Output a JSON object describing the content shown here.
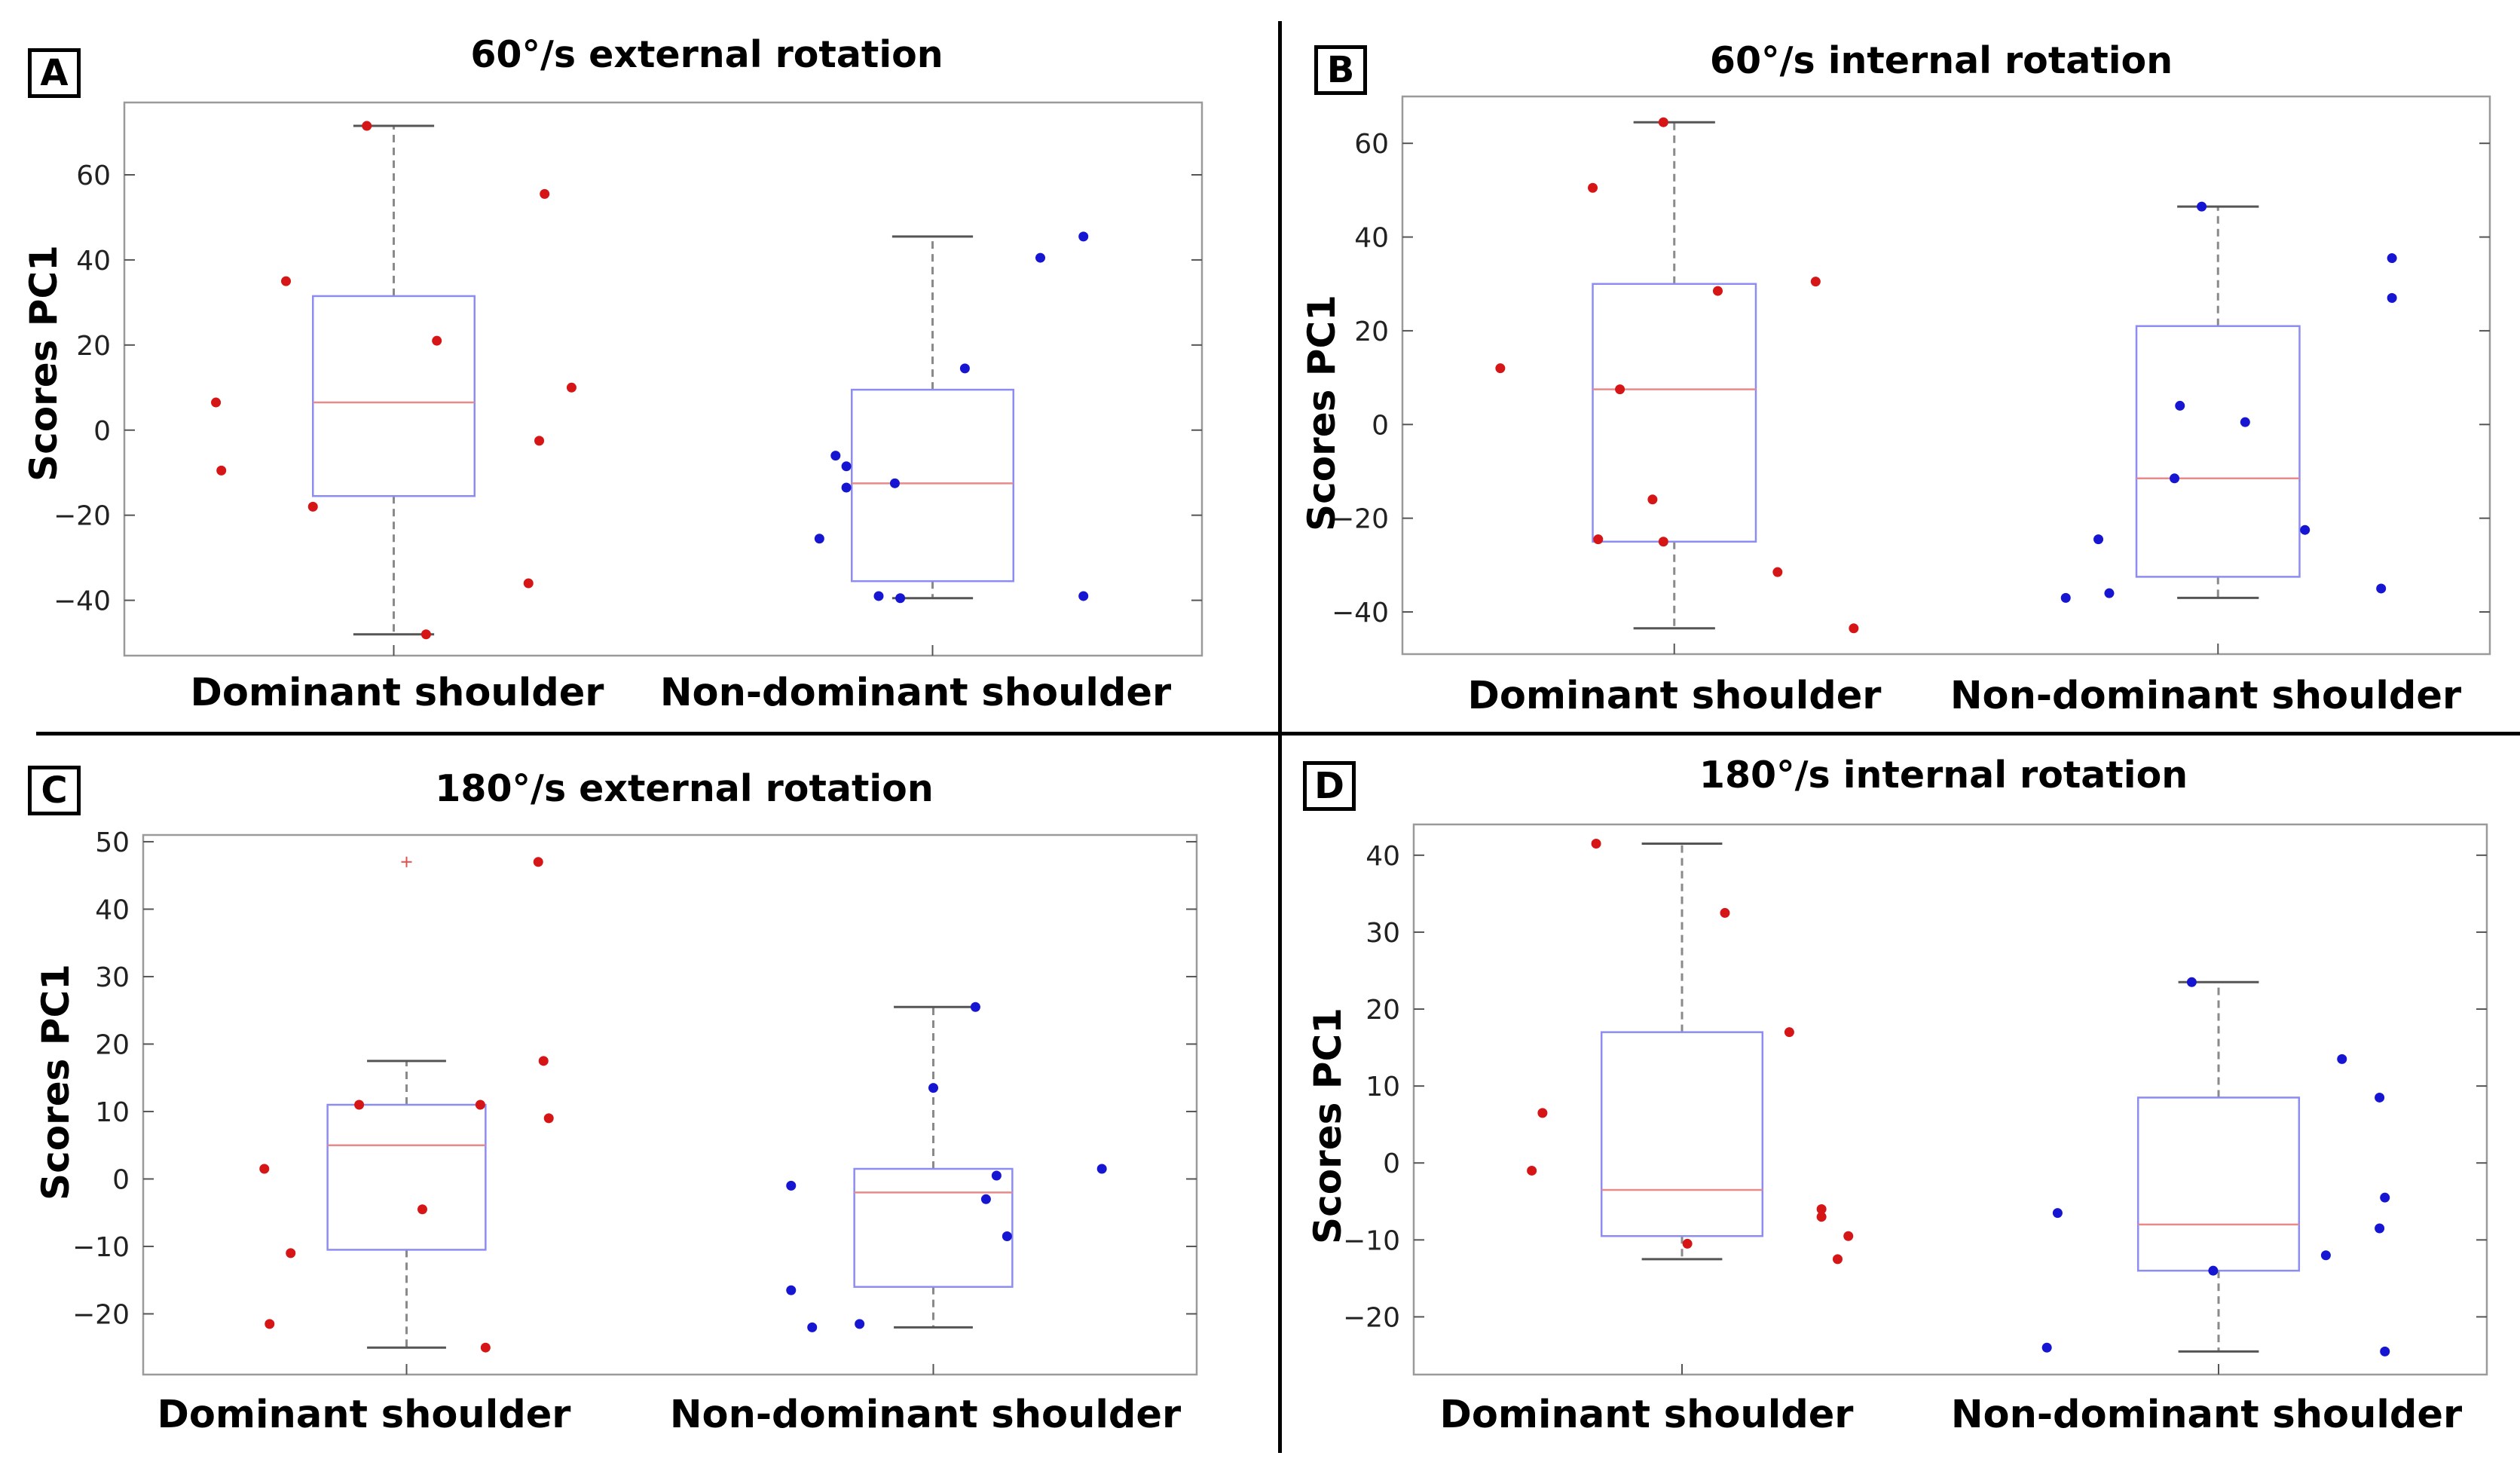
{
  "colors": {
    "box_edge": "#8c8cf2",
    "median": "#e88a8a",
    "whisker": "#8a8a8a",
    "dominant_points": "#d61616",
    "non_dominant_points": "#1616d2",
    "outlier": "#e05050",
    "frame": "#9a9a9a"
  },
  "chart_data": [
    {
      "type": "box",
      "panel": "A",
      "title": "60°/s external rotation",
      "ylabel": "Scores PC1",
      "ylim": [
        -53,
        77
      ],
      "yticks": [
        -40,
        -20,
        0,
        20,
        40,
        60
      ],
      "ytick_labels": [
        "−40",
        "−20",
        "0",
        "20",
        "40",
        "60"
      ],
      "categories": [
        "Dominant shoulder",
        "Non-dominant shoulder"
      ],
      "boxes": [
        {
          "name": "Dominant shoulder",
          "whisker_low": -48,
          "q1": -15.5,
          "median": 6.5,
          "q3": 31.5,
          "whisker_high": 71.5,
          "outliers": [],
          "points": [
            [
              -0.05,
              71.5
            ],
            [
              0.28,
              55.5
            ],
            [
              -0.2,
              35
            ],
            [
              0.08,
              21
            ],
            [
              -0.33,
              6.5
            ],
            [
              0.33,
              10
            ],
            [
              0.27,
              -2.5
            ],
            [
              -0.32,
              -9.5
            ],
            [
              -0.15,
              -18
            ],
            [
              0.25,
              -36
            ],
            [
              0.06,
              -48
            ]
          ]
        },
        {
          "name": "Non-dominant shoulder",
          "whisker_low": -39.5,
          "q1": -35.5,
          "median": -12.5,
          "q3": 9.5,
          "whisker_high": 45.5,
          "outliers": [],
          "points": [
            [
              0.28,
              45.5
            ],
            [
              0.2,
              40.5
            ],
            [
              0.06,
              14.5
            ],
            [
              -0.18,
              -6
            ],
            [
              -0.16,
              -8.5
            ],
            [
              -0.07,
              -12.5
            ],
            [
              -0.16,
              -13.5
            ],
            [
              -0.21,
              -25.5
            ],
            [
              -0.1,
              -39
            ],
            [
              -0.06,
              -39.5
            ],
            [
              0.28,
              -39
            ]
          ]
        }
      ]
    },
    {
      "type": "box",
      "panel": "B",
      "title": "60°/s internal rotation",
      "ylabel": "Scores PC1",
      "ylim": [
        -49,
        70
      ],
      "yticks": [
        -40,
        -20,
        0,
        20,
        40,
        60
      ],
      "ytick_labels": [
        "−40",
        "−20",
        "0",
        "20",
        "40",
        "60"
      ],
      "categories": [
        "Dominant shoulder",
        "Non-dominant shoulder"
      ],
      "boxes": [
        {
          "name": "Dominant shoulder",
          "whisker_low": -43.5,
          "q1": -25,
          "median": 7.5,
          "q3": 30,
          "whisker_high": 64.5,
          "outliers": [],
          "points": [
            [
              -0.02,
              64.5
            ],
            [
              -0.15,
              50.5
            ],
            [
              0.26,
              30.5
            ],
            [
              0.08,
              28.5
            ],
            [
              -0.32,
              12
            ],
            [
              -0.1,
              7.5
            ],
            [
              -0.04,
              -16
            ],
            [
              -0.14,
              -24.5
            ],
            [
              -0.02,
              -25
            ],
            [
              0.19,
              -31.5
            ],
            [
              0.33,
              -43.5
            ]
          ]
        },
        {
          "name": "Non-dominant shoulder",
          "whisker_low": -37,
          "q1": -32.5,
          "median": -11.5,
          "q3": 21,
          "whisker_high": 46.5,
          "outliers": [],
          "points": [
            [
              -0.03,
              46.5
            ],
            [
              0.32,
              35.5
            ],
            [
              0.32,
              27
            ],
            [
              -0.07,
              4
            ],
            [
              0.05,
              0.5
            ],
            [
              -0.08,
              -11.5
            ],
            [
              -0.22,
              -24.5
            ],
            [
              0.16,
              -22.5
            ],
            [
              0.3,
              -35
            ],
            [
              -0.2,
              -36
            ],
            [
              -0.28,
              -37
            ]
          ]
        }
      ]
    },
    {
      "type": "box",
      "panel": "C",
      "title": "180°/s external rotation",
      "ylabel": "Scores PC1",
      "ylim": [
        -29,
        51
      ],
      "yticks": [
        -20,
        -10,
        0,
        10,
        20,
        30,
        40,
        50
      ],
      "ytick_labels": [
        "−20",
        "−10",
        "0",
        "10",
        "20",
        "30",
        "40",
        "50"
      ],
      "categories": [
        "Dominant shoulder",
        "Non-dominant shoulder"
      ],
      "boxes": [
        {
          "name": "Dominant shoulder",
          "whisker_low": -25,
          "q1": -10.5,
          "median": 5,
          "q3": 11,
          "whisker_high": 17.5,
          "outliers": [
            47
          ],
          "points": [
            [
              0.25,
              47
            ],
            [
              0.26,
              17.5
            ],
            [
              -0.09,
              11
            ],
            [
              0.14,
              11
            ],
            [
              0.27,
              9
            ],
            [
              -0.27,
              1.5
            ],
            [
              0.03,
              -4.5
            ],
            [
              -0.22,
              -11
            ],
            [
              -0.26,
              -21.5
            ],
            [
              0.15,
              -25
            ]
          ]
        },
        {
          "name": "Non-dominant shoulder",
          "whisker_low": -22,
          "q1": -16,
          "median": -2,
          "q3": 1.5,
          "whisker_high": 25.5,
          "outliers": [],
          "points": [
            [
              0.08,
              25.5
            ],
            [
              0.0,
              13.5
            ],
            [
              0.32,
              1.5
            ],
            [
              0.12,
              0.5
            ],
            [
              -0.27,
              -1
            ],
            [
              0.1,
              -3
            ],
            [
              0.14,
              -8.5
            ],
            [
              -0.27,
              -16.5
            ],
            [
              -0.23,
              -22
            ],
            [
              -0.14,
              -21.5
            ]
          ]
        }
      ]
    },
    {
      "type": "box",
      "panel": "D",
      "title": "180°/s internal rotation",
      "ylabel": "Scores PC1",
      "ylim": [
        -27.5,
        44
      ],
      "yticks": [
        -20,
        -10,
        0,
        10,
        20,
        30,
        40
      ],
      "ytick_labels": [
        "−20",
        "−10",
        "0",
        "10",
        "20",
        "30",
        "40"
      ],
      "categories": [
        "Dominant shoulder",
        "Non-dominant shoulder"
      ],
      "boxes": [
        {
          "name": "Dominant shoulder",
          "whisker_low": -12.5,
          "q1": -9.5,
          "median": -3.5,
          "q3": 17,
          "whisker_high": 41.5,
          "outliers": [],
          "points": [
            [
              -0.16,
              41.5
            ],
            [
              0.08,
              32.5
            ],
            [
              0.2,
              17
            ],
            [
              -0.26,
              6.5
            ],
            [
              -0.28,
              -1
            ],
            [
              0.26,
              -6
            ],
            [
              0.26,
              -7
            ],
            [
              0.31,
              -9.5
            ],
            [
              0.01,
              -10.5
            ],
            [
              0.29,
              -12.5
            ]
          ]
        },
        {
          "name": "Non-dominant shoulder",
          "whisker_low": -24.5,
          "q1": -14,
          "median": -8,
          "q3": 8.5,
          "whisker_high": 23.5,
          "outliers": [],
          "points": [
            [
              -0.05,
              23.5
            ],
            [
              0.23,
              13.5
            ],
            [
              0.3,
              8.5
            ],
            [
              0.31,
              -4.5
            ],
            [
              -0.3,
              -6.5
            ],
            [
              0.3,
              -8.5
            ],
            [
              0.2,
              -12
            ],
            [
              -0.01,
              -14
            ],
            [
              -0.32,
              -24
            ],
            [
              0.31,
              -24.5
            ]
          ]
        }
      ]
    }
  ]
}
